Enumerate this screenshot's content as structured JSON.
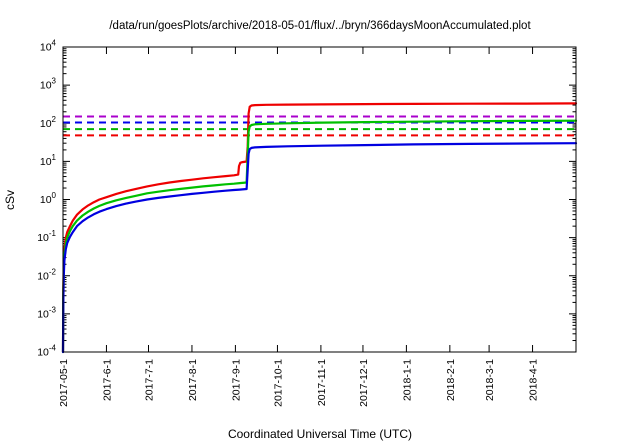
{
  "chart_data": {
    "type": "line",
    "title": "/data/run/goesPlots/archive/2018-05-01/flux/../bryn/366daysMoonAccumulated.plot",
    "xlabel": "Coordinated Universal Time (UTC)",
    "ylabel": "cSv",
    "y_scale": "log",
    "ylim": [
      0.0001,
      10000
    ],
    "xlim": [
      0,
      366
    ],
    "grid": false,
    "legend": "none",
    "y_tick_exponents": [
      4,
      3,
      2,
      1,
      0,
      -1,
      -2,
      -3,
      -4
    ],
    "x_ticks": [
      {
        "day": 0,
        "label": "2017-05-1"
      },
      {
        "day": 31,
        "label": "2017-6-1"
      },
      {
        "day": 61,
        "label": "2017-7-1"
      },
      {
        "day": 92,
        "label": "2017-8-1"
      },
      {
        "day": 123,
        "label": "2017-9-1"
      },
      {
        "day": 153,
        "label": "2017-10-1"
      },
      {
        "day": 184,
        "label": "2017-11-1"
      },
      {
        "day": 214,
        "label": "2017-12-1"
      },
      {
        "day": 245,
        "label": "2018-1-1"
      },
      {
        "day": 276,
        "label": "2018-2-1"
      },
      {
        "day": 304,
        "label": "2018-3-1"
      },
      {
        "day": 335,
        "label": "2018-4-1"
      }
    ],
    "limit_lines": [
      {
        "name": "purple-limit",
        "color": "#aa00cc",
        "value": 150,
        "style": "dashed"
      },
      {
        "name": "blue-limit",
        "color": "#0000ee",
        "value": 105,
        "style": "dashed"
      },
      {
        "name": "green-limit",
        "color": "#00b400",
        "value": 70,
        "style": "dashed"
      },
      {
        "name": "red-limit",
        "color": "#ee0000",
        "value": 48,
        "style": "dashed"
      }
    ],
    "series": [
      {
        "name": "red-accumulated-dose",
        "color": "#ee0000",
        "points": [
          [
            0,
            0.0001
          ],
          [
            0.2,
            0.004
          ],
          [
            0.5,
            0.018
          ],
          [
            1,
            0.05
          ],
          [
            2,
            0.1
          ],
          [
            3,
            0.14
          ],
          [
            5,
            0.2
          ],
          [
            7,
            0.28
          ],
          [
            10,
            0.4
          ],
          [
            14,
            0.55
          ],
          [
            18,
            0.7
          ],
          [
            22,
            0.85
          ],
          [
            26,
            1.0
          ],
          [
            31,
            1.15
          ],
          [
            38,
            1.4
          ],
          [
            45,
            1.65
          ],
          [
            52,
            1.9
          ],
          [
            60,
            2.2
          ],
          [
            68,
            2.5
          ],
          [
            76,
            2.8
          ],
          [
            84,
            3.05
          ],
          [
            92,
            3.3
          ],
          [
            100,
            3.6
          ],
          [
            108,
            3.85
          ],
          [
            116,
            4.1
          ],
          [
            122,
            4.3
          ],
          [
            125,
            4.5
          ],
          [
            125.6,
            7.5
          ],
          [
            126.5,
            9.2
          ],
          [
            128,
            9.6
          ],
          [
            131,
            9.9
          ],
          [
            131.8,
            25
          ],
          [
            132.4,
            180
          ],
          [
            133.2,
            270
          ],
          [
            134.5,
            292
          ],
          [
            137,
            300
          ],
          [
            145,
            304
          ],
          [
            160,
            308
          ],
          [
            185,
            312
          ],
          [
            215,
            317
          ],
          [
            250,
            321
          ],
          [
            290,
            325
          ],
          [
            330,
            328
          ],
          [
            366,
            331
          ]
        ]
      },
      {
        "name": "green-accumulated-dose",
        "color": "#00c000",
        "points": [
          [
            0,
            0.0001
          ],
          [
            0.2,
            0.003
          ],
          [
            0.5,
            0.013
          ],
          [
            1,
            0.035
          ],
          [
            2,
            0.07
          ],
          [
            3,
            0.1
          ],
          [
            5,
            0.15
          ],
          [
            7,
            0.2
          ],
          [
            10,
            0.28
          ],
          [
            14,
            0.38
          ],
          [
            18,
            0.48
          ],
          [
            22,
            0.58
          ],
          [
            26,
            0.68
          ],
          [
            31,
            0.8
          ],
          [
            38,
            0.95
          ],
          [
            45,
            1.1
          ],
          [
            52,
            1.25
          ],
          [
            60,
            1.45
          ],
          [
            68,
            1.6
          ],
          [
            76,
            1.75
          ],
          [
            84,
            1.9
          ],
          [
            92,
            2.05
          ],
          [
            100,
            2.2
          ],
          [
            108,
            2.35
          ],
          [
            116,
            2.5
          ],
          [
            122,
            2.6
          ],
          [
            126,
            2.7
          ],
          [
            131,
            2.8
          ],
          [
            131.8,
            15
          ],
          [
            132.4,
            60
          ],
          [
            133.2,
            82
          ],
          [
            134.5,
            90
          ],
          [
            137,
            94
          ],
          [
            145,
            97
          ],
          [
            160,
            100
          ],
          [
            185,
            104
          ],
          [
            215,
            107
          ],
          [
            250,
            110
          ],
          [
            290,
            113
          ],
          [
            330,
            115
          ],
          [
            366,
            117
          ]
        ]
      },
      {
        "name": "blue-accumulated-dose",
        "color": "#0000e0",
        "points": [
          [
            0,
            0.0001
          ],
          [
            0.2,
            0.002
          ],
          [
            0.5,
            0.009
          ],
          [
            1,
            0.025
          ],
          [
            2,
            0.05
          ],
          [
            3,
            0.072
          ],
          [
            5,
            0.105
          ],
          [
            7,
            0.14
          ],
          [
            10,
            0.2
          ],
          [
            14,
            0.27
          ],
          [
            18,
            0.34
          ],
          [
            22,
            0.41
          ],
          [
            26,
            0.48
          ],
          [
            31,
            0.56
          ],
          [
            38,
            0.67
          ],
          [
            45,
            0.78
          ],
          [
            52,
            0.88
          ],
          [
            60,
            1.0
          ],
          [
            68,
            1.1
          ],
          [
            76,
            1.2
          ],
          [
            84,
            1.3
          ],
          [
            92,
            1.4
          ],
          [
            100,
            1.5
          ],
          [
            108,
            1.6
          ],
          [
            116,
            1.7
          ],
          [
            122,
            1.77
          ],
          [
            126,
            1.82
          ],
          [
            131,
            1.88
          ],
          [
            131.8,
            6
          ],
          [
            132.4,
            16
          ],
          [
            133.2,
            21
          ],
          [
            134.5,
            22.5
          ],
          [
            137,
            23.2
          ],
          [
            145,
            24
          ],
          [
            160,
            24.8
          ],
          [
            185,
            25.8
          ],
          [
            215,
            26.8
          ],
          [
            250,
            27.8
          ],
          [
            290,
            28.7
          ],
          [
            330,
            29.4
          ],
          [
            366,
            30
          ]
        ]
      }
    ]
  }
}
